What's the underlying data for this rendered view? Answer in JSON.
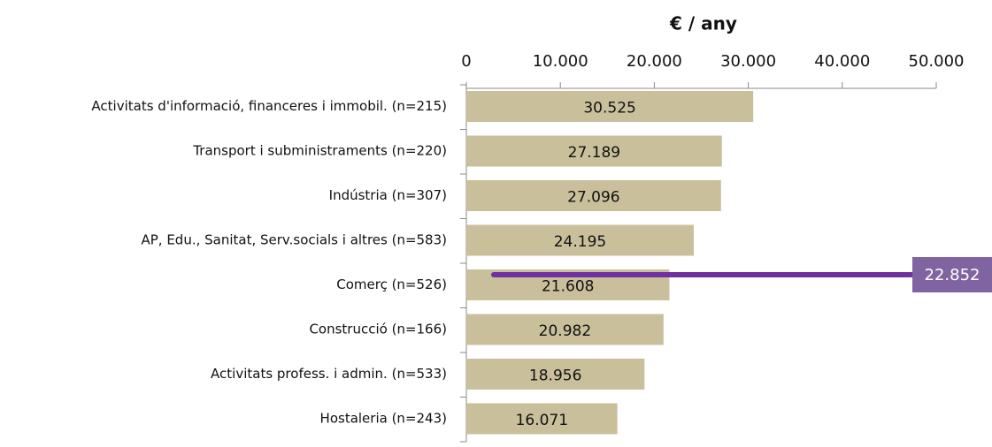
{
  "chart_data": {
    "type": "bar",
    "orientation": "horizontal",
    "title": "€ / any",
    "categories": [
      "Activitats d'informació, financeres i immobil. (n=215)",
      "Transport i subministraments (n=220)",
      "Indústria (n=307)",
      "AP, Edu., Sanitat, Serv.socials i altres (n=583)",
      "Comerç (n=526)",
      "Construcció (n=166)",
      "Activitats profess. i admin. (n=533)",
      "Hostaleria (n=243)"
    ],
    "values": [
      30525,
      27189,
      27096,
      24195,
      21608,
      20982,
      18956,
      16071
    ],
    "value_labels": [
      "30.525",
      "27.189",
      "27.096",
      "24.195",
      "21.608",
      "20.982",
      "18.956",
      "16.071"
    ],
    "color": "#c9bf9b",
    "xlim": [
      0,
      50000
    ],
    "xticks": [
      0,
      {
        "value": 10000,
        "label": "10.000"
      },
      {
        "value": 20000,
        "label": "20.000"
      },
      {
        "value": 30000,
        "label": "30.000"
      },
      {
        "value": 40000,
        "label": "40.000"
      },
      {
        "value": 50000,
        "label": "50.000"
      }
    ],
    "reference_line": {
      "value": 22852,
      "label": "22.852",
      "color": "#7030a0",
      "label_color": "#8064a2"
    }
  }
}
